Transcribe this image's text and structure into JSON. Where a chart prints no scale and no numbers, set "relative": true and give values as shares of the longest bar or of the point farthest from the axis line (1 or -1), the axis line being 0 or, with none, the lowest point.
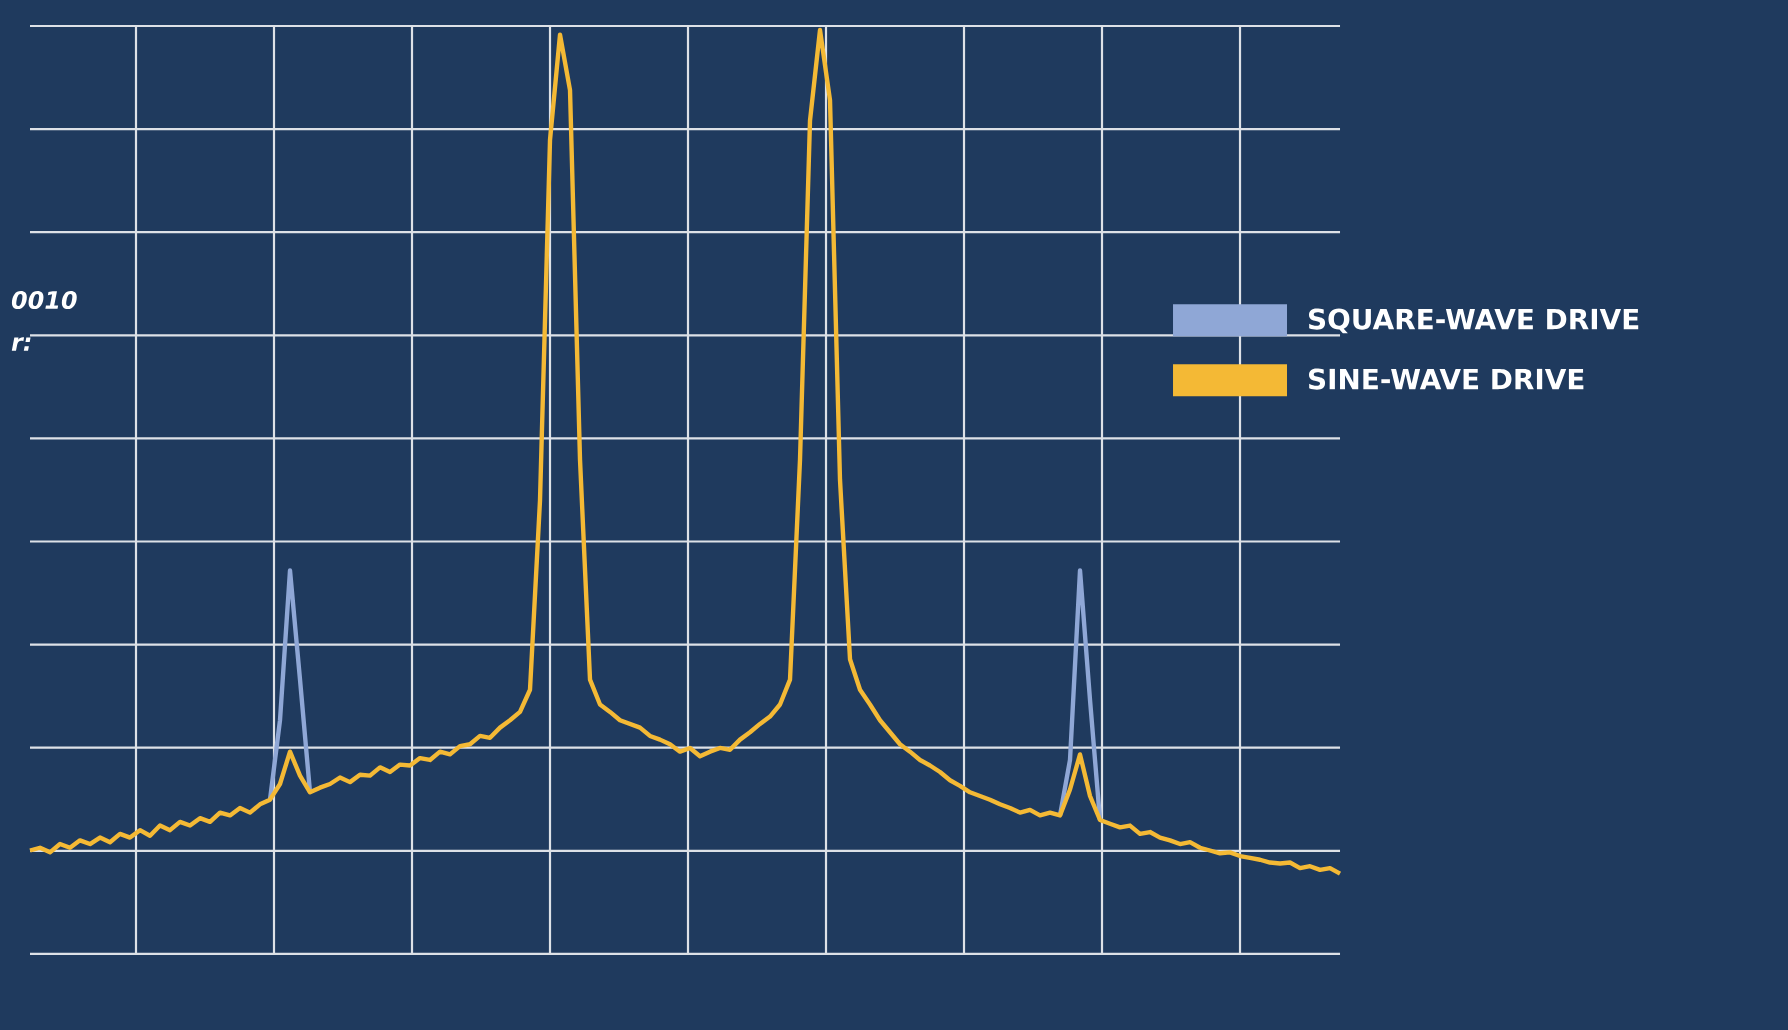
{
  "chart_data": {
    "type": "line",
    "relative": true,
    "grid": true,
    "legend": "right",
    "annotations": [
      "0010",
      "r:"
    ],
    "categories": [
      null,
      null,
      null,
      null,
      null,
      null,
      null,
      null,
      null,
      null,
      null,
      null,
      null,
      null,
      null,
      null,
      null,
      null,
      null,
      null,
      null,
      null,
      null,
      null,
      null,
      null,
      null,
      null,
      null,
      null,
      null,
      null,
      null,
      null,
      null,
      null,
      null,
      null,
      null,
      null,
      null,
      null,
      null,
      null,
      null,
      null,
      null,
      null,
      null,
      null,
      null,
      null,
      null,
      null,
      null,
      null,
      null,
      null,
      null,
      null,
      null,
      null,
      null,
      null,
      null,
      null,
      null,
      null,
      null,
      null,
      null,
      null,
      null,
      null,
      null,
      null,
      null,
      null,
      null,
      null,
      null,
      null,
      null,
      null,
      null,
      null,
      null,
      null,
      null,
      null,
      null,
      null,
      null,
      null,
      null,
      null,
      null,
      null,
      null,
      null,
      null,
      null,
      null,
      null,
      null,
      null,
      null,
      null,
      null,
      null,
      null,
      null,
      null,
      null,
      null,
      null,
      null,
      null,
      null,
      null,
      null,
      null,
      null,
      null,
      null,
      null,
      null,
      null,
      null,
      null,
      null,
      null
    ],
    "series": [
      {
        "name": "SQUARE-WAVE DRIVE",
        "color": "#8fa7d6",
        "values": [
          null,
          null,
          null,
          null,
          null,
          null,
          null,
          null,
          null,
          null,
          null,
          null,
          null,
          null,
          null,
          null,
          null,
          null,
          null,
          null,
          null,
          null,
          null,
          null,
          0.167,
          0.253,
          0.415,
          0.297,
          0.175,
          null,
          null,
          null,
          null,
          null,
          null,
          null,
          null,
          null,
          null,
          null,
          null,
          null,
          null,
          null,
          null,
          null,
          null,
          null,
          null,
          null,
          null,
          null,
          null,
          null,
          null,
          null,
          null,
          null,
          null,
          null,
          null,
          null,
          null,
          null,
          null,
          null,
          null,
          null,
          null,
          null,
          null,
          null,
          null,
          null,
          null,
          null,
          null,
          null,
          null,
          null,
          null,
          null,
          null,
          null,
          null,
          null,
          null,
          null,
          null,
          null,
          null,
          null,
          null,
          null,
          null,
          null,
          null,
          null,
          null,
          null,
          null,
          null,
          null,
          0.15,
          0.21,
          0.415,
          0.275,
          0.145,
          null,
          null,
          null,
          null,
          null,
          null,
          null,
          null,
          null,
          null,
          null,
          null,
          null,
          null,
          null,
          null,
          null,
          null,
          null,
          null,
          null,
          null,
          null,
          null
        ]
      },
      {
        "name": "SINE-WAVE DRIVE",
        "color": "#f4b935",
        "values": [
          0.112,
          0.115,
          0.11,
          0.119,
          0.115,
          0.123,
          0.119,
          0.126,
          0.121,
          0.13,
          0.126,
          0.134,
          0.128,
          0.139,
          0.134,
          0.143,
          0.139,
          0.147,
          0.143,
          0.153,
          0.15,
          0.158,
          0.153,
          0.162,
          0.167,
          0.184,
          0.219,
          0.193,
          0.175,
          0.18,
          0.184,
          0.191,
          0.186,
          0.194,
          0.193,
          0.202,
          0.197,
          0.205,
          0.204,
          0.212,
          0.21,
          0.219,
          0.216,
          0.225,
          0.227,
          0.236,
          0.234,
          0.245,
          0.253,
          0.262,
          0.286,
          0.491,
          0.881,
          0.995,
          0.935,
          0.535,
          0.297,
          0.27,
          0.262,
          0.253,
          0.249,
          0.245,
          0.236,
          0.232,
          0.227,
          0.219,
          0.223,
          0.214,
          0.219,
          0.223,
          0.221,
          0.232,
          0.24,
          0.249,
          0.257,
          0.27,
          0.297,
          0.535,
          0.902,
          1,
          0.924,
          0.513,
          0.319,
          0.286,
          0.27,
          0.253,
          0.24,
          0.227,
          0.219,
          0.21,
          0.204,
          0.197,
          0.188,
          0.182,
          0.175,
          0.171,
          0.167,
          0.162,
          0.158,
          0.153,
          0.156,
          0.15,
          0.153,
          0.15,
          0.178,
          0.216,
          0.171,
          0.145,
          0.141,
          0.137,
          0.139,
          0.13,
          0.132,
          0.126,
          0.123,
          0.119,
          0.121,
          0.115,
          0.112,
          0.109,
          0.11,
          0.106,
          0.104,
          0.102,
          0.099,
          0.098,
          0.099,
          0.093,
          0.095,
          0.091,
          0.093,
          0.087
        ]
      }
    ]
  }
}
